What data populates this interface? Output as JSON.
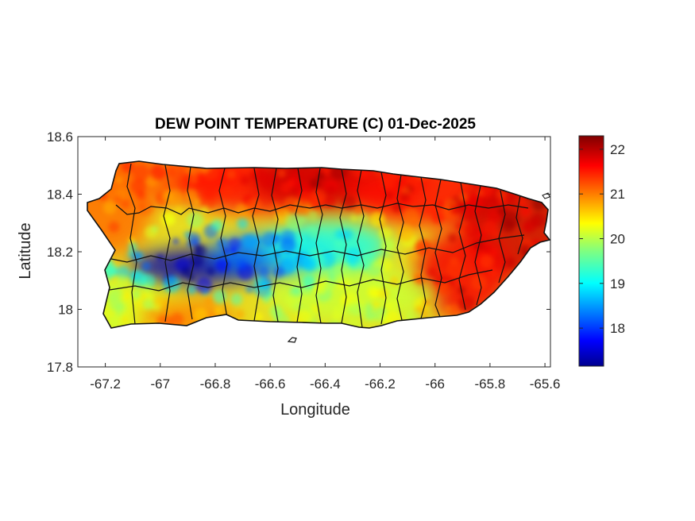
{
  "title": "DEW POINT TEMPERATURE (C) 01-Dec-2025",
  "xlabel": "Longitude",
  "ylabel": "Latitude",
  "colorbar": {
    "min": 17.15,
    "max": 22.3,
    "ticks": [
      "18",
      "19",
      "20",
      "21",
      "22"
    ],
    "colormap": "jet"
  },
  "chart_data": {
    "type": "heatmap",
    "title": "DEW POINT TEMPERATURE (C) 01-Dec-2025",
    "xlabel": "Longitude",
    "ylabel": "Latitude",
    "xlim": [
      -67.3,
      -65.58
    ],
    "ylim": [
      17.8,
      18.6
    ],
    "xticks": [
      "-67.2",
      "-67",
      "-66.8",
      "-66.6",
      "-66.4",
      "-66.2",
      "-66",
      "-65.8",
      "-65.6"
    ],
    "yticks": [
      "17.8",
      "18",
      "18.2",
      "18.4",
      "18.6"
    ],
    "value_range": [
      17.15,
      22.3
    ],
    "region": "Puerto Rico",
    "features": [
      {
        "lon": -67.0,
        "lat": 18.48,
        "value": 21.2
      },
      {
        "lon": -66.6,
        "lat": 18.44,
        "value": 21.6
      },
      {
        "lon": -66.35,
        "lat": 18.45,
        "value": 21.9
      },
      {
        "lon": -66.0,
        "lat": 18.4,
        "value": 21.6
      },
      {
        "lon": -65.7,
        "lat": 18.3,
        "value": 21.9
      },
      {
        "lon": -65.9,
        "lat": 18.12,
        "value": 21.7
      },
      {
        "lon": -67.2,
        "lat": 18.35,
        "value": 21.1
      },
      {
        "lon": -66.85,
        "lat": 18.15,
        "value": 17.4
      },
      {
        "lon": -66.6,
        "lat": 18.19,
        "value": 18.4
      },
      {
        "lon": -66.4,
        "lat": 18.22,
        "value": 19.2
      },
      {
        "lon": -66.3,
        "lat": 18.05,
        "value": 20.1
      },
      {
        "lon": -67.1,
        "lat": 18.0,
        "value": 20.2
      },
      {
        "lon": -66.9,
        "lat": 17.97,
        "value": 21.0
      }
    ]
  }
}
